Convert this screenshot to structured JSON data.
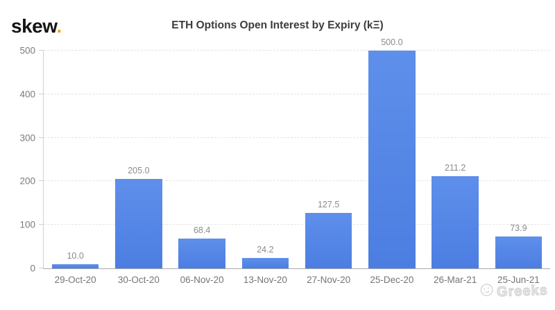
{
  "header": {
    "logo_text": "skew",
    "logo_dot": ".",
    "logo_dot_color": "#f5a623"
  },
  "chart_data": {
    "type": "bar",
    "title": "ETH Options Open Interest by Expiry (kΞ)",
    "categories": [
      "29-Oct-20",
      "30-Oct-20",
      "06-Nov-20",
      "13-Nov-20",
      "27-Nov-20",
      "25-Dec-20",
      "26-Mar-21",
      "25-Jun-21"
    ],
    "values": [
      10.0,
      205.0,
      68.4,
      24.2,
      127.5,
      500.0,
      211.2,
      73.9
    ],
    "value_labels": [
      "10.0",
      "205.0",
      "68.4",
      "24.2",
      "127.5",
      "500.0",
      "211.2",
      "73.9"
    ],
    "xlabel": "",
    "ylabel": "",
    "ylim": [
      0,
      500
    ],
    "yticks": [
      0,
      100,
      200,
      300,
      400,
      500
    ],
    "grid": "horizontal-dashed",
    "legend": false,
    "bar_color_top": "#5e8feb",
    "bar_color_bottom": "#4c7ee2",
    "axis_color": "#a9a9a9",
    "label_color": "#7b7b7b"
  },
  "watermark": {
    "icon": "winking-face-icon",
    "text": "Greeks"
  }
}
